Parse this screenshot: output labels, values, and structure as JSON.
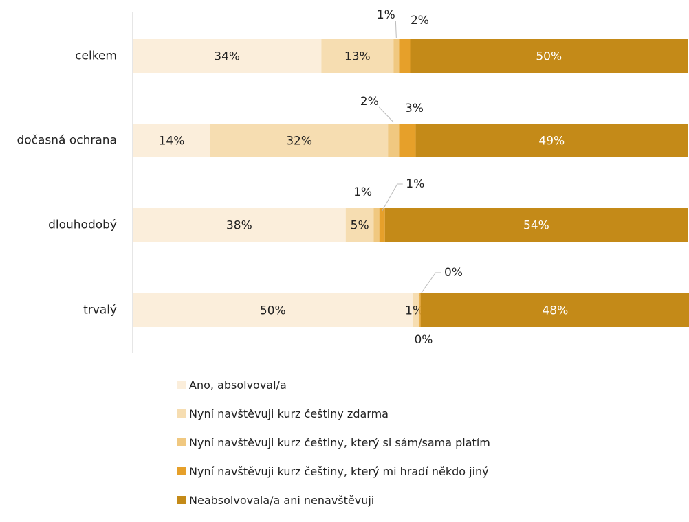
{
  "chart_data": {
    "type": "bar",
    "orientation": "horizontal",
    "stacked": true,
    "normalized": true,
    "categories": [
      "celkem",
      "dočasná ochrana",
      "dlouhodobý",
      "trvalý"
    ],
    "series": [
      {
        "name": "Ano, absolvoval/a",
        "color": "#FBEEDB",
        "values": [
          34,
          14,
          38,
          50
        ],
        "labels": [
          "34%",
          "14%",
          "38%",
          "50%"
        ]
      },
      {
        "name": "Nyní navštěvuji kurz češtiny zdarma",
        "color": "#F6DDB1",
        "values": [
          13,
          32,
          5,
          1
        ],
        "labels": [
          "13%",
          "32%",
          "5%",
          "1%"
        ]
      },
      {
        "name": "Nyní navštěvuji kurz češtiny, který si sám/sama platím",
        "color": "#F0C880",
        "values": [
          1,
          2,
          1,
          0
        ],
        "labels": [
          "1%",
          "2%",
          "1%",
          "0%"
        ]
      },
      {
        "name": "Nyní navštěvuji kurz češtiny, který mi hradí někdo jiný",
        "color": "#E6A02A",
        "values": [
          2,
          3,
          1,
          0
        ],
        "labels": [
          "2%",
          "3%",
          "1%",
          "0%"
        ]
      },
      {
        "name": "Neabsolvovala/a ani nenavštěvuji",
        "color": "#C48A18",
        "values": [
          50,
          49,
          54,
          48
        ],
        "labels": [
          "50%",
          "49%",
          "54%",
          "48%"
        ]
      }
    ],
    "legend_position": "bottom",
    "grid": false
  }
}
